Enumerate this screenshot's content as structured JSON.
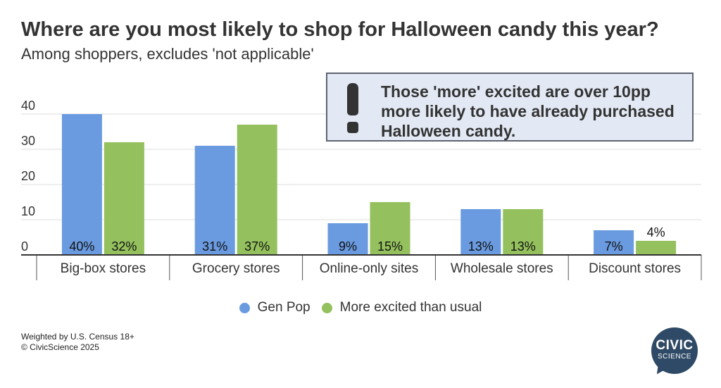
{
  "header": {
    "title": "Where are you most likely to shop for Halloween candy this year?",
    "subtitle": "Among shoppers, excludes 'not applicable'"
  },
  "callout": {
    "icon": "exclamation-icon",
    "text": "Those 'more' excited are over 10pp more likely to have already purchased Halloween candy."
  },
  "chart_data": {
    "type": "bar",
    "title": "Where are you most likely to shop for Halloween candy this year?",
    "subtitle": "Among shoppers, excludes 'not applicable'",
    "xlabel": "",
    "ylabel": "",
    "categories": [
      "Big-box stores",
      "Grocery stores",
      "Online-only sites",
      "Wholesale stores",
      "Discount stores"
    ],
    "series": [
      {
        "name": "Gen Pop",
        "values": [
          40,
          31,
          9,
          13,
          7
        ],
        "labels": [
          "40%",
          "31%",
          "9%",
          "13%",
          "7%"
        ],
        "color": "#6a9be0"
      },
      {
        "name": "More excited than usual",
        "values": [
          32,
          37,
          15,
          13,
          4
        ],
        "labels": [
          "32%",
          "37%",
          "15%",
          "13%",
          "4%"
        ],
        "color": "#94c15d"
      }
    ],
    "yticks": [
      0,
      10,
      20,
      30,
      40
    ],
    "ylim": [
      0,
      40
    ],
    "grid": true,
    "legend": "bottom-center"
  },
  "legend": {
    "items": [
      {
        "label": "Gen Pop",
        "color": "#6a9be0"
      },
      {
        "label": "More excited than usual",
        "color": "#94c15d"
      }
    ]
  },
  "footer": {
    "line1": "Weighted by U.S. Census 18+",
    "line2": "© CivicScience 2025"
  },
  "logo": {
    "line1": "CIVIC",
    "line2": "SCIENCE",
    "color": "#2f4a66"
  }
}
